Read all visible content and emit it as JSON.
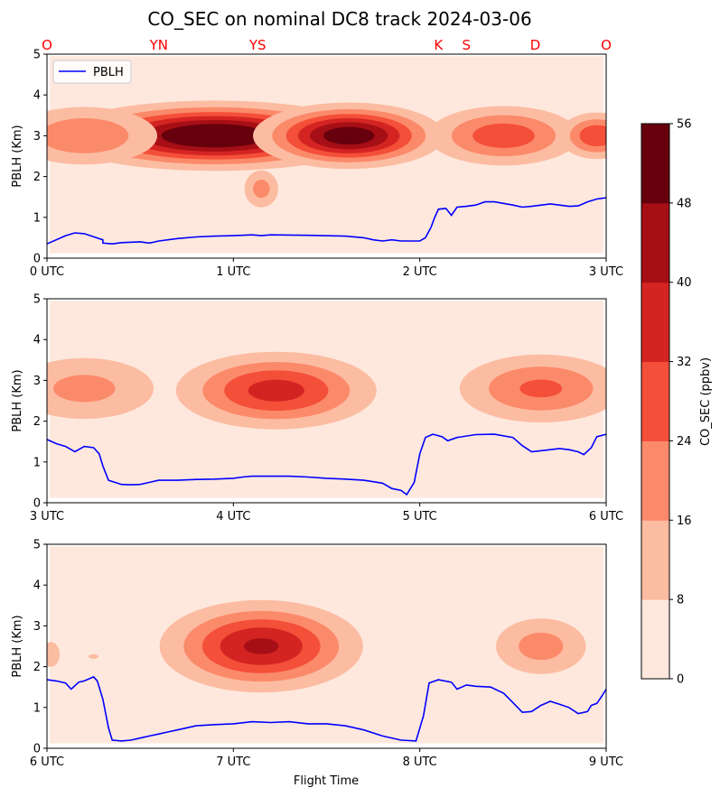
{
  "chart_data": {
    "type": "heatmap",
    "title": "CO_SEC on nominal DC8 track 2024-03-06",
    "xlabel": "Flight Time",
    "ylabel": "PBLH (Km)",
    "ylim": [
      0,
      5
    ],
    "yticks": [
      "0",
      "1",
      "2",
      "3",
      "4",
      "5"
    ],
    "legend": {
      "label": "PBLH",
      "placement": "top-left"
    },
    "site_labels": [
      {
        "label": "O",
        "hour": 0.0
      },
      {
        "label": "YN",
        "hour": 0.6
      },
      {
        "label": "YS",
        "hour": 1.13
      },
      {
        "label": "K",
        "hour": 2.1
      },
      {
        "label": "S",
        "hour": 2.25
      },
      {
        "label": "D",
        "hour": 2.62
      },
      {
        "label": "O",
        "hour": 3.0
      }
    ],
    "colorbar": {
      "label": "CO_SEC (ppbv)",
      "ticks": [
        "0",
        "8",
        "16",
        "24",
        "32",
        "40",
        "48",
        "56"
      ],
      "levels": [
        0,
        8,
        16,
        24,
        32,
        40,
        48,
        56
      ],
      "colors": [
        "#fee8de",
        "#fcbca2",
        "#fb8a6a",
        "#f44f39",
        "#d42422",
        "#a50f15",
        "#67000d"
      ]
    },
    "panels": [
      {
        "xlim": [
          0,
          3
        ],
        "xticks": [
          "0 UTC",
          "1 UTC",
          "2 UTC",
          "3 UTC"
        ],
        "pblh": [
          [
            0,
            0.35
          ],
          [
            0.1,
            0.55
          ],
          [
            0.15,
            0.62
          ],
          [
            0.2,
            0.6
          ],
          [
            0.3,
            0.45
          ],
          [
            0.3,
            0.37
          ],
          [
            0.35,
            0.35
          ],
          [
            0.4,
            0.38
          ],
          [
            0.5,
            0.4
          ],
          [
            0.55,
            0.37
          ],
          [
            0.6,
            0.42
          ],
          [
            0.7,
            0.48
          ],
          [
            0.8,
            0.52
          ],
          [
            0.9,
            0.54
          ],
          [
            1.0,
            0.55
          ],
          [
            1.1,
            0.57
          ],
          [
            1.15,
            0.55
          ],
          [
            1.2,
            0.57
          ],
          [
            1.4,
            0.56
          ],
          [
            1.6,
            0.54
          ],
          [
            1.7,
            0.5
          ],
          [
            1.75,
            0.45
          ],
          [
            1.8,
            0.42
          ],
          [
            1.85,
            0.45
          ],
          [
            1.9,
            0.42
          ],
          [
            2.0,
            0.42
          ],
          [
            2.03,
            0.5
          ],
          [
            2.06,
            0.75
          ],
          [
            2.08,
            1.0
          ],
          [
            2.1,
            1.2
          ],
          [
            2.14,
            1.22
          ],
          [
            2.17,
            1.05
          ],
          [
            2.2,
            1.25
          ],
          [
            2.25,
            1.27
          ],
          [
            2.3,
            1.3
          ],
          [
            2.35,
            1.38
          ],
          [
            2.4,
            1.38
          ],
          [
            2.5,
            1.3
          ],
          [
            2.55,
            1.25
          ],
          [
            2.6,
            1.27
          ],
          [
            2.7,
            1.33
          ],
          [
            2.75,
            1.3
          ],
          [
            2.8,
            1.27
          ],
          [
            2.85,
            1.28
          ],
          [
            2.9,
            1.38
          ],
          [
            2.95,
            1.45
          ],
          [
            3.0,
            1.48
          ]
        ],
        "blobs": [
          {
            "cx": 0.9,
            "cy": 3.0,
            "rx": 1.0,
            "ry": 1.0,
            "peak": 60
          },
          {
            "cx": 1.62,
            "cy": 3.0,
            "rx": 0.6,
            "ry": 0.95,
            "peak": 55
          },
          {
            "cx": 2.45,
            "cy": 3.0,
            "rx": 0.5,
            "ry": 0.9,
            "peak": 30
          },
          {
            "cx": 2.95,
            "cy": 3.0,
            "rx": 0.25,
            "ry": 0.7,
            "peak": 32
          },
          {
            "cx": 0.2,
            "cy": 3.0,
            "rx": 0.5,
            "ry": 0.9,
            "peak": 24
          },
          {
            "cx": 1.15,
            "cy": 1.7,
            "rx": 0.12,
            "ry": 0.6,
            "peak": 20
          }
        ]
      },
      {
        "xlim": [
          3,
          6
        ],
        "xticks": [
          "3 UTC",
          "4 UTC",
          "5 UTC",
          "6 UTC"
        ],
        "pblh": [
          [
            3.0,
            1.55
          ],
          [
            3.05,
            1.45
          ],
          [
            3.1,
            1.38
          ],
          [
            3.15,
            1.25
          ],
          [
            3.2,
            1.38
          ],
          [
            3.25,
            1.35
          ],
          [
            3.28,
            1.2
          ],
          [
            3.3,
            0.9
          ],
          [
            3.33,
            0.55
          ],
          [
            3.4,
            0.45
          ],
          [
            3.45,
            0.44
          ],
          [
            3.5,
            0.45
          ],
          [
            3.55,
            0.5
          ],
          [
            3.6,
            0.55
          ],
          [
            3.7,
            0.55
          ],
          [
            3.8,
            0.57
          ],
          [
            3.9,
            0.58
          ],
          [
            4.0,
            0.6
          ],
          [
            4.05,
            0.63
          ],
          [
            4.1,
            0.65
          ],
          [
            4.2,
            0.65
          ],
          [
            4.3,
            0.65
          ],
          [
            4.4,
            0.63
          ],
          [
            4.5,
            0.6
          ],
          [
            4.6,
            0.58
          ],
          [
            4.7,
            0.55
          ],
          [
            4.8,
            0.48
          ],
          [
            4.85,
            0.35
          ],
          [
            4.9,
            0.3
          ],
          [
            4.93,
            0.2
          ],
          [
            4.97,
            0.5
          ],
          [
            5.0,
            1.2
          ],
          [
            5.03,
            1.6
          ],
          [
            5.07,
            1.68
          ],
          [
            5.12,
            1.62
          ],
          [
            5.15,
            1.52
          ],
          [
            5.2,
            1.6
          ],
          [
            5.3,
            1.67
          ],
          [
            5.4,
            1.68
          ],
          [
            5.5,
            1.6
          ],
          [
            5.55,
            1.4
          ],
          [
            5.6,
            1.25
          ],
          [
            5.7,
            1.3
          ],
          [
            5.75,
            1.33
          ],
          [
            5.8,
            1.3
          ],
          [
            5.85,
            1.25
          ],
          [
            5.88,
            1.18
          ],
          [
            5.92,
            1.35
          ],
          [
            5.95,
            1.62
          ],
          [
            6.0,
            1.68
          ]
        ],
        "blobs": [
          {
            "cx": 4.23,
            "cy": 2.75,
            "rx": 0.65,
            "ry": 1.15,
            "peak": 36
          },
          {
            "cx": 5.65,
            "cy": 2.8,
            "rx": 0.55,
            "ry": 1.05,
            "peak": 26
          },
          {
            "cx": 3.2,
            "cy": 2.8,
            "rx": 0.5,
            "ry": 1.0,
            "peak": 19
          },
          {
            "cx": 4.6,
            "cy": 2.3,
            "rx": 0.35,
            "ry": 0.4,
            "peak": 8
          }
        ]
      },
      {
        "xlim": [
          6,
          9
        ],
        "xticks": [
          "6 UTC",
          "7 UTC",
          "8 UTC",
          "9 UTC"
        ],
        "pblh": [
          [
            6.0,
            1.68
          ],
          [
            6.05,
            1.65
          ],
          [
            6.1,
            1.6
          ],
          [
            6.13,
            1.45
          ],
          [
            6.17,
            1.62
          ],
          [
            6.2,
            1.65
          ],
          [
            6.25,
            1.75
          ],
          [
            6.27,
            1.65
          ],
          [
            6.3,
            1.2
          ],
          [
            6.33,
            0.5
          ],
          [
            6.35,
            0.2
          ],
          [
            6.4,
            0.18
          ],
          [
            6.45,
            0.2
          ],
          [
            6.5,
            0.25
          ],
          [
            6.55,
            0.3
          ],
          [
            6.6,
            0.35
          ],
          [
            6.65,
            0.4
          ],
          [
            6.7,
            0.45
          ],
          [
            6.8,
            0.55
          ],
          [
            6.9,
            0.58
          ],
          [
            7.0,
            0.6
          ],
          [
            7.1,
            0.65
          ],
          [
            7.2,
            0.63
          ],
          [
            7.3,
            0.65
          ],
          [
            7.4,
            0.6
          ],
          [
            7.5,
            0.6
          ],
          [
            7.6,
            0.55
          ],
          [
            7.7,
            0.45
          ],
          [
            7.8,
            0.3
          ],
          [
            7.9,
            0.2
          ],
          [
            7.98,
            0.18
          ],
          [
            8.02,
            0.8
          ],
          [
            8.05,
            1.6
          ],
          [
            8.1,
            1.68
          ],
          [
            8.17,
            1.62
          ],
          [
            8.2,
            1.45
          ],
          [
            8.25,
            1.55
          ],
          [
            8.3,
            1.52
          ],
          [
            8.38,
            1.5
          ],
          [
            8.45,
            1.35
          ],
          [
            8.5,
            1.12
          ],
          [
            8.55,
            0.88
          ],
          [
            8.6,
            0.9
          ],
          [
            8.65,
            1.05
          ],
          [
            8.7,
            1.15
          ],
          [
            8.75,
            1.08
          ],
          [
            8.8,
            1.0
          ],
          [
            8.85,
            0.85
          ],
          [
            8.9,
            0.9
          ],
          [
            8.92,
            1.05
          ],
          [
            8.95,
            1.1
          ],
          [
            8.98,
            1.3
          ],
          [
            9.0,
            1.45
          ]
        ],
        "blobs": [
          {
            "cx": 7.15,
            "cy": 2.5,
            "rx": 0.65,
            "ry": 1.35,
            "peak": 42
          },
          {
            "cx": 8.65,
            "cy": 2.5,
            "rx": 0.32,
            "ry": 0.9,
            "peak": 20
          },
          {
            "cx": 6.02,
            "cy": 2.3,
            "rx": 0.08,
            "ry": 0.5,
            "peak": 12
          },
          {
            "cx": 6.25,
            "cy": 2.25,
            "rx": 0.07,
            "ry": 0.15,
            "peak": 9
          }
        ]
      }
    ]
  },
  "style": {
    "pblh_color": "#0000ff",
    "site_label_color": "#ff0000",
    "background_fill": "#fee8de"
  }
}
